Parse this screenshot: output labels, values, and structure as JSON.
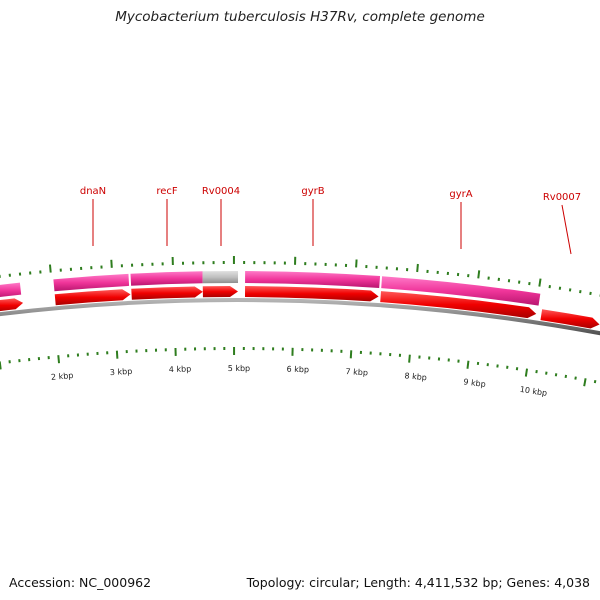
{
  "title": "Mycobacterium tuberculosis H37Rv, complete genome",
  "footer": {
    "accession": "Accession: NC_000962",
    "summary": "Topology: circular; Length: 4,411,532 bp; Genes: 4,038"
  },
  "colors": {
    "gene_label": "#cc0000",
    "tick": "#2e7d1e",
    "backbone": "#808080",
    "mrna": "#f0359a",
    "mrna_pseudo": "#c0c0c0",
    "cds": "#f00000"
  },
  "map": {
    "ruler_unit": "kbp",
    "ruler_ticks_kbp": [
      2,
      3,
      4,
      5,
      6,
      7,
      8,
      9,
      10
    ]
  },
  "genes": [
    {
      "label": "dnaN"
    },
    {
      "label": "recF"
    },
    {
      "label": "Rv0004"
    },
    {
      "label": "gyrB"
    },
    {
      "label": "gyrA"
    },
    {
      "label": "Rv0007"
    }
  ]
}
